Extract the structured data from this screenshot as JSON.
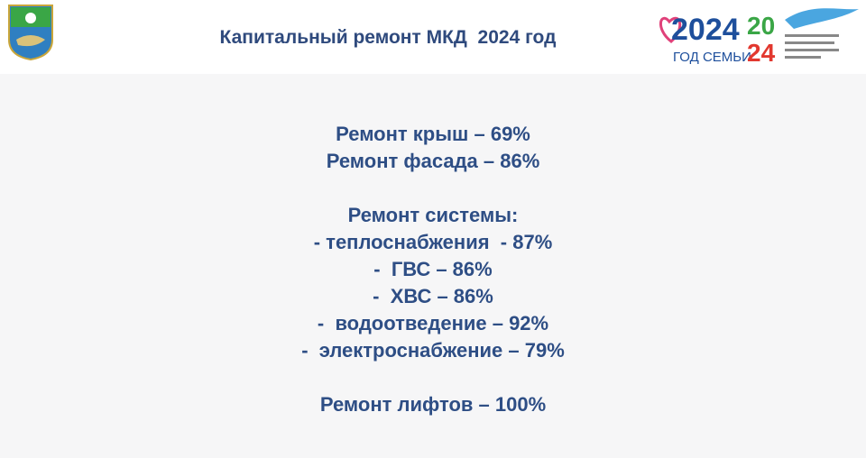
{
  "header": {
    "title": "Капитальный ремонт МКД  2024 год",
    "logo": {
      "year": "2024",
      "caption": "ГОД СЕМЬИ",
      "year2_top": "20",
      "year2_bottom": "24"
    }
  },
  "body": {
    "roofs": "Ремонт крыш – 69%",
    "facade": "Ремонт фасада – 86%",
    "systems": {
      "heading": "Ремонт системы:",
      "items": [
        "- теплоснабжения  - 87%",
        "-  ГВС – 86%",
        "-  ХВС – 86%",
        "-  водоотведение – 92%",
        "-  электроснабжение – 79%"
      ]
    },
    "elevators": "Ремонт лифтов – 100%"
  }
}
